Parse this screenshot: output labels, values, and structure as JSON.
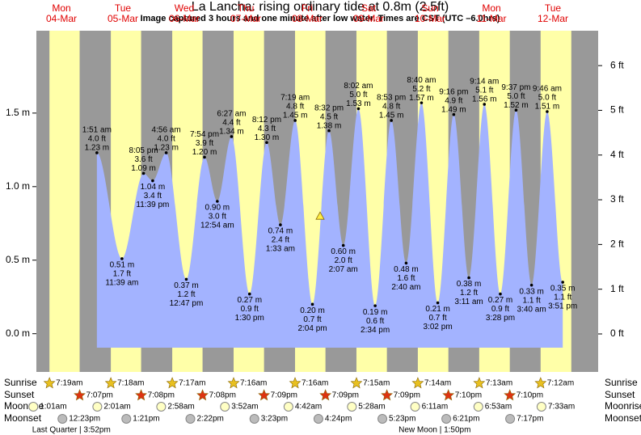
{
  "chart_data": {
    "type": "tide",
    "title": "La Lancha: rising  ordinary tide at 0.8m (2.5ft)",
    "subtitle": "Image captured 3 hours and one minute after low water. Times are CST (UTC –6.0hrs)",
    "current_height": 0.8,
    "ylim": [
      -0.26,
      2.06
    ],
    "yticks": [
      {
        "value": 0,
        "label": "0.0 m"
      },
      {
        "value": 0.5,
        "label": "0.5 m"
      },
      {
        "value": 1,
        "label": "1.0 m"
      },
      {
        "value": 1.5,
        "label": "1.5 m"
      }
    ],
    "y2lim": [
      -0.85,
      6.78
    ],
    "y2ticks": [
      {
        "value": 0,
        "label": "0 ft"
      },
      {
        "value": 1,
        "label": "1 ft"
      },
      {
        "value": 2,
        "label": "2 ft"
      },
      {
        "value": 3,
        "label": "3 ft"
      },
      {
        "value": 4,
        "label": "4 ft"
      },
      {
        "value": 5,
        "label": "5 ft"
      },
      {
        "value": 6,
        "label": "6 ft"
      }
    ],
    "color": "#a3b3ff",
    "day_color": "#ffffa8",
    "night_color": "#999999",
    "row_labels": {
      "sunrise": "Sunrise",
      "sunset": "Sunset",
      "moonrise": "Moonrise",
      "moonset": "Moonset"
    },
    "days": [
      {
        "weekday": "Mon",
        "date": "04-Mar",
        "sunrise": "7:19am",
        "sunset": "7:07pm",
        "moonrise": "1:01am",
        "moonset": "12:23pm",
        "moon_phase": "Last Quarter | 3:52pm",
        "tides": []
      },
      {
        "weekday": "Tue",
        "date": "05-Mar",
        "sunrise": "7:18am",
        "sunset": "7:08pm",
        "moonrise": "2:01am",
        "moonset": "1:21pm",
        "tides": [
          {
            "time": "1:51 am",
            "feet": "4.0 ft",
            "meters": 1.23,
            "meters_label": "1.23 m"
          },
          {
            "time": "11:39 am",
            "feet": "1.7 ft",
            "meters": 0.51,
            "meters_label": "0.51 m"
          },
          {
            "time": "8:05 pm",
            "feet": "3.6 ft",
            "meters": 1.09,
            "meters_label": "1.09 m"
          },
          {
            "time": "11:39 pm",
            "feet": "3.4 ft",
            "meters": 1.04,
            "meters_label": "1.04 m"
          }
        ]
      },
      {
        "weekday": "Wed",
        "date": "06-Mar",
        "sunrise": "7:17am",
        "sunset": "7:08pm",
        "moonrise": "2:58am",
        "moonset": "2:22pm",
        "tides": [
          {
            "time": "4:56 am",
            "feet": "4.0 ft",
            "meters": 1.23,
            "meters_label": "1.23 m"
          },
          {
            "time": "12:47 pm",
            "feet": "1.2 ft",
            "meters": 0.37,
            "meters_label": "0.37 m"
          },
          {
            "time": "7:54 pm",
            "feet": "3.9 ft",
            "meters": 1.2,
            "meters_label": "1.20 m"
          }
        ]
      },
      {
        "weekday": "Thu",
        "date": "07-Mar",
        "sunrise": "7:16am",
        "sunset": "7:09pm",
        "moonrise": "3:52am",
        "moonset": "3:23pm",
        "tides": [
          {
            "time": "12:54 am",
            "feet": "3.0 ft",
            "meters": 0.9,
            "meters_label": "0.90 m"
          },
          {
            "time": "6:27 am",
            "feet": "4.4 ft",
            "meters": 1.34,
            "meters_label": "1.34 m"
          },
          {
            "time": "1:30 pm",
            "feet": "0.9 ft",
            "meters": 0.27,
            "meters_label": "0.27 m"
          },
          {
            "time": "8:12 pm",
            "feet": "4.3 ft",
            "meters": 1.3,
            "meters_label": "1.30 m"
          }
        ]
      },
      {
        "weekday": "Fri",
        "date": "08-Mar",
        "sunrise": "7:16am",
        "sunset": "7:09pm",
        "moonrise": "4:42am",
        "moonset": "4:24pm",
        "tides": [
          {
            "time": "1:33 am",
            "feet": "2.4 ft",
            "meters": 0.74,
            "meters_label": "0.74 m"
          },
          {
            "time": "7:19 am",
            "feet": "4.8 ft",
            "meters": 1.45,
            "meters_label": "1.45 m"
          },
          {
            "time": "2:04 pm",
            "feet": "0.7 ft",
            "meters": 0.2,
            "meters_label": "0.20 m"
          },
          {
            "time": "8:32 pm",
            "feet": "4.5 ft",
            "meters": 1.38,
            "meters_label": "1.38 m"
          }
        ]
      },
      {
        "weekday": "Sat",
        "date": "09-Mar",
        "sunrise": "7:15am",
        "sunset": "7:09pm",
        "moonrise": "5:28am",
        "moonset": "5:23pm",
        "tides": [
          {
            "time": "2:07 am",
            "feet": "2.0 ft",
            "meters": 0.6,
            "meters_label": "0.60 m"
          },
          {
            "time": "8:02 am",
            "feet": "5.0 ft",
            "meters": 1.53,
            "meters_label": "1.53 m"
          },
          {
            "time": "2:34 pm",
            "feet": "0.6 ft",
            "meters": 0.19,
            "meters_label": "0.19 m"
          },
          {
            "time": "8:53 pm",
            "feet": "4.8 ft",
            "meters": 1.45,
            "meters_label": "1.45 m"
          }
        ]
      },
      {
        "weekday": "Sun",
        "date": "10-Mar",
        "sunrise": "7:14am",
        "sunset": "7:10pm",
        "moonrise": "6:11am",
        "moonset": "6:21pm",
        "moon_phase": "New Moon | 1:50pm",
        "tides": [
          {
            "time": "2:40 am",
            "feet": "1.6 ft",
            "meters": 0.48,
            "meters_label": "0.48 m"
          },
          {
            "time": "8:40 am",
            "feet": "5.2 ft",
            "meters": 1.57,
            "meters_label": "1.57 m"
          },
          {
            "time": "3:02 pm",
            "feet": "0.7 ft",
            "meters": 0.21,
            "meters_label": "0.21 m"
          },
          {
            "time": "9:16 pm",
            "feet": "4.9 ft",
            "meters": 1.49,
            "meters_label": "1.49 m"
          }
        ]
      },
      {
        "weekday": "Mon",
        "date": "11-Mar",
        "sunrise": "7:13am",
        "sunset": "7:10pm",
        "moonrise": "6:53am",
        "moonset": "7:17pm",
        "tides": [
          {
            "time": "3:11 am",
            "feet": "1.2 ft",
            "meters": 0.38,
            "meters_label": "0.38 m"
          },
          {
            "time": "9:14 am",
            "feet": "5.1 ft",
            "meters": 1.56,
            "meters_label": "1.56 m"
          },
          {
            "time": "3:28 pm",
            "feet": "0.9 ft",
            "meters": 0.27,
            "meters_label": "0.27 m"
          },
          {
            "time": "9:37 pm",
            "feet": "5.0 ft",
            "meters": 1.52,
            "meters_label": "1.52 m"
          }
        ]
      },
      {
        "weekday": "Tue",
        "date": "12-Mar",
        "sunrise": "7:12am",
        "moonrise": "7:33am",
        "tides": [
          {
            "time": "3:40 am",
            "feet": "1.1 ft",
            "meters": 0.33,
            "meters_label": "0.33 m"
          },
          {
            "time": "9:46 am",
            "feet": "5.0 ft",
            "meters": 1.51,
            "meters_label": "1.51 m"
          },
          {
            "time": "3:51 pm",
            "feet": "1.1 ft",
            "meters": 0.35,
            "meters_label": "0.35 m"
          }
        ]
      }
    ]
  }
}
